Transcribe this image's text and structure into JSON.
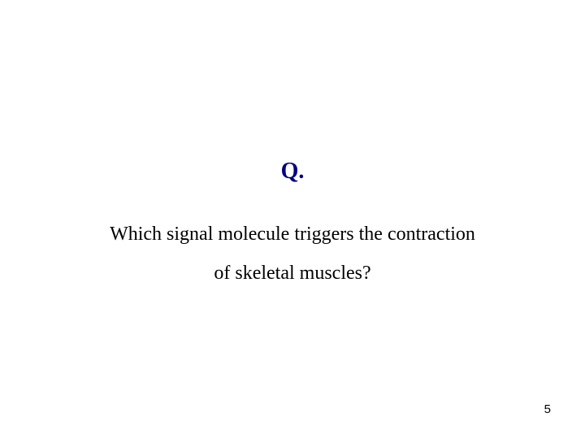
{
  "slide": {
    "heading": "Q.",
    "heading_color": "#000080",
    "heading_fontsize": 28,
    "body_line1": "Which signal molecule triggers the contraction",
    "body_line2": "of skeletal muscles?",
    "body_fontsize": 24,
    "body_color": "#000000",
    "background_color": "#ffffff",
    "page_number": "5",
    "page_number_fontsize": 15
  }
}
